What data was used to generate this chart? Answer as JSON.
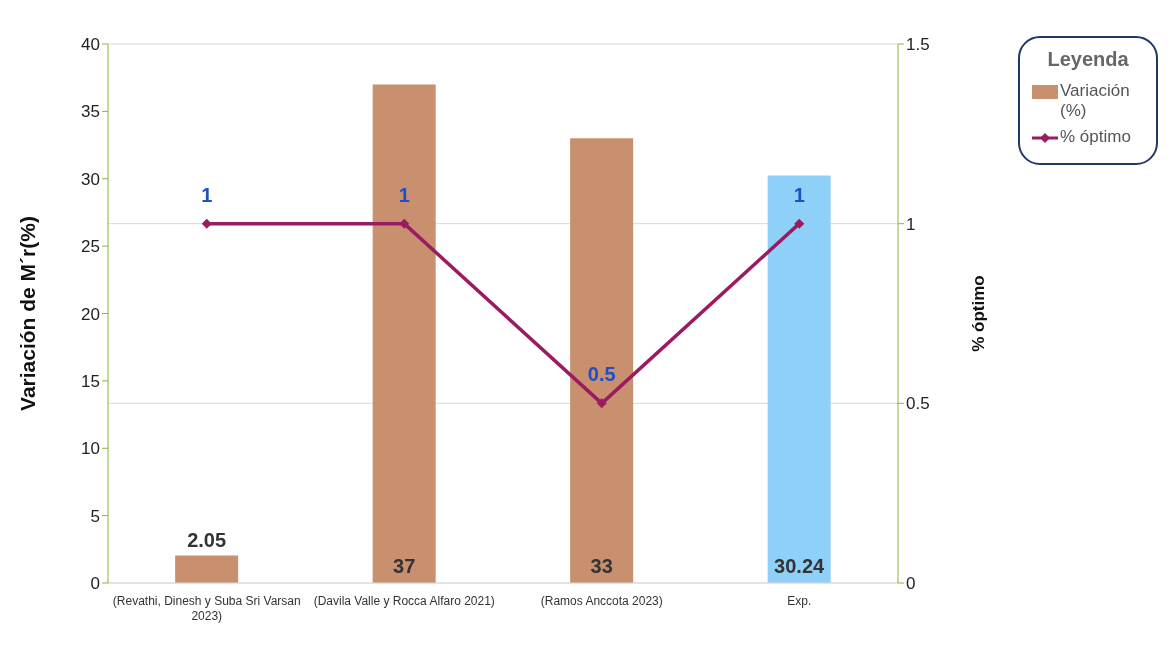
{
  "chart_data": {
    "type": "bar",
    "categories": [
      "(Revathi, Dinesh y Suba Sri Varsan 2023)",
      "(Davila Valle y Rocca Alfaro 2021)",
      "(Ramos Anccota 2023)",
      "Exp."
    ],
    "series": [
      {
        "name": "Variación (%)",
        "color": "#c8906e",
        "colors": [
          "#c8906e",
          "#c8906e",
          "#c8906e",
          "#8fd0f8"
        ],
        "values": [
          2.05,
          37,
          33,
          30.24
        ]
      },
      {
        "name": "% óptimo",
        "type": "line",
        "axis": "y2",
        "color": "#9b1b63",
        "values": [
          1,
          1,
          0.5,
          1
        ]
      }
    ],
    "ylabel": "Variación de M´r(%)",
    "y2label": "% óptimo",
    "legend_title": "Leyenda",
    "ylim": [
      0,
      40
    ],
    "yticks": [
      0,
      5,
      10,
      15,
      20,
      25,
      30,
      35,
      40
    ],
    "y2lim": [
      0,
      1.5
    ],
    "y2ticks": [
      0,
      0.5,
      1,
      1.5
    ],
    "grid": "y2",
    "legend": "top right",
    "marker": "diamond",
    "line_style": "solid",
    "data_labels": true
  }
}
